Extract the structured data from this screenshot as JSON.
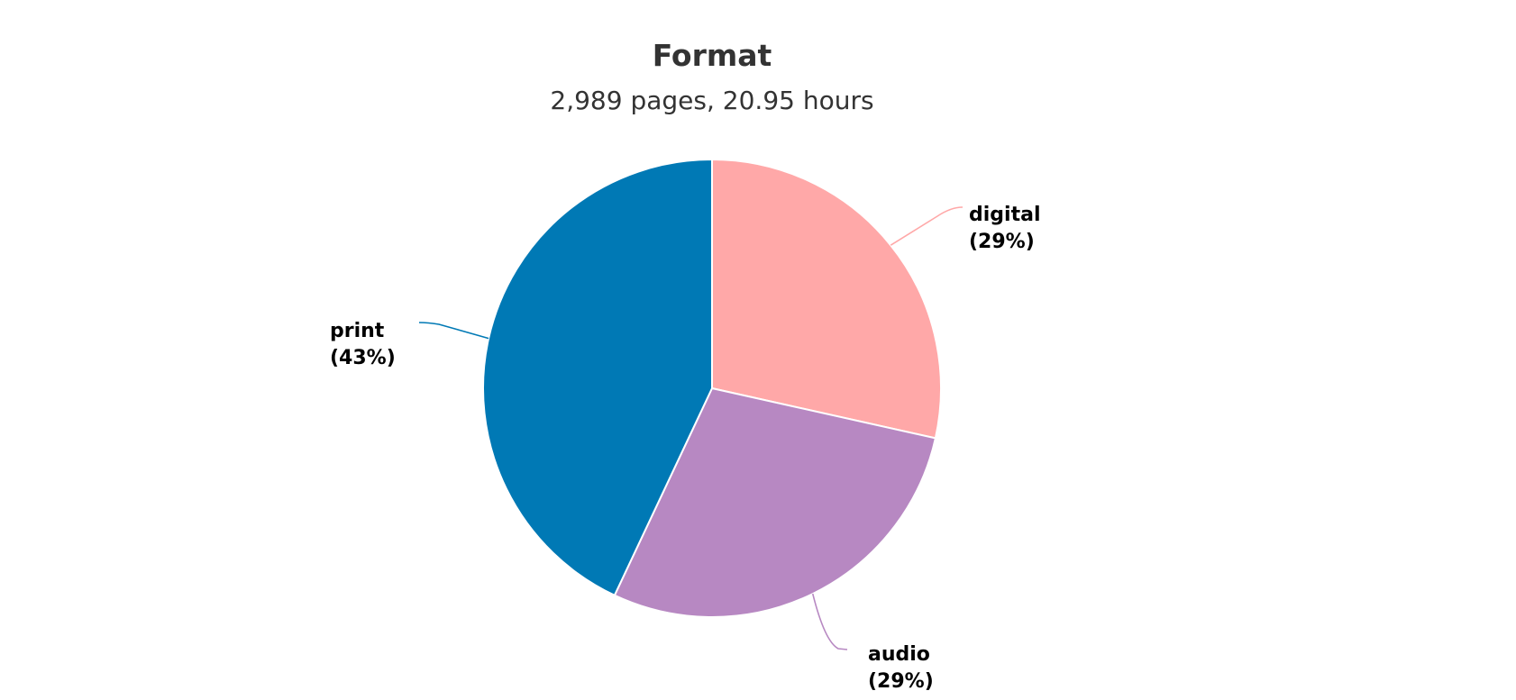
{
  "chart_data": {
    "type": "pie",
    "title": "Format",
    "subtitle": "2,989 pages, 20.95 hours",
    "slices": [
      {
        "label": "digital",
        "percent_label": "(29%)",
        "value": 28.5,
        "color": "#FFA8A8"
      },
      {
        "label": "audio",
        "percent_label": "(29%)",
        "value": 28.5,
        "color": "#B788C2"
      },
      {
        "label": "print",
        "percent_label": "(43%)",
        "value": 43.0,
        "color": "#0079B5"
      }
    ]
  }
}
